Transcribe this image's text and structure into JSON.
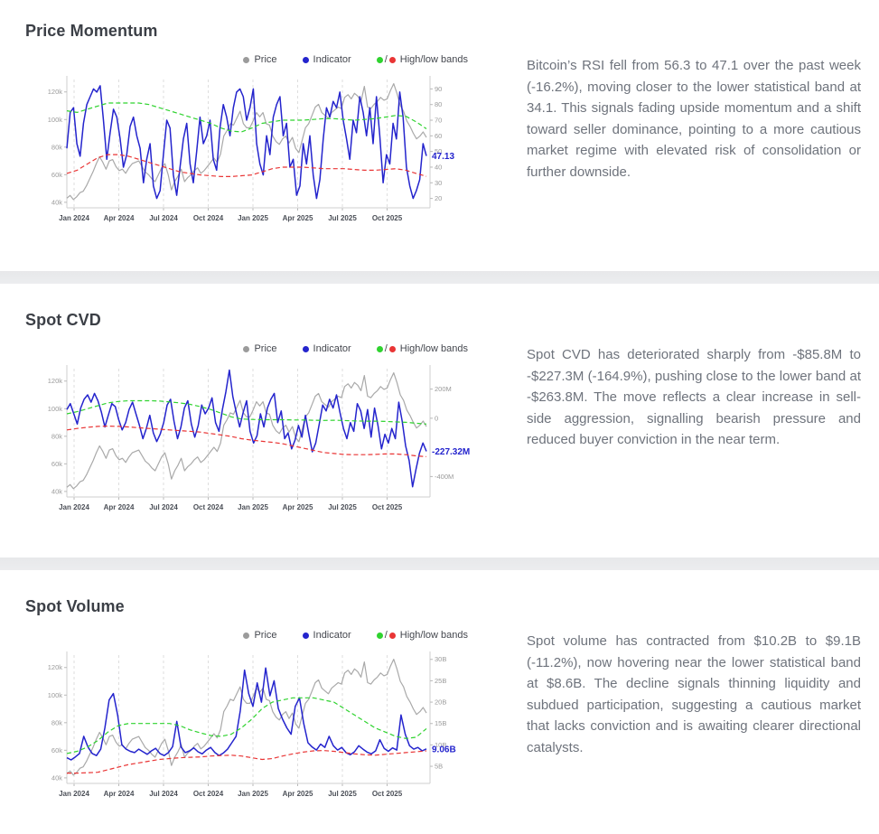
{
  "page": {
    "background": "#ffffff",
    "divider_color": "#eaebed"
  },
  "legend": {
    "price": "Price",
    "indicator": "Indicator",
    "bands": "High/low bands",
    "separator": "/",
    "price_color": "#9b9b9b",
    "indicator_color": "#2424cd",
    "high_color": "#2fd32f",
    "low_color": "#e93535"
  },
  "sections": [
    {
      "title": "Price Momentum",
      "description": "Bitcoin’s RSI fell from 56.3 to 47.1 over the past week (-16.2%), moving closer to the lower statistical band at 34.1. This signals fading upside momentum and a shift toward seller dominance, pointing to a more cautious market regime with elevated risk of consolidation or further downside."
    },
    {
      "title": "Spot CVD",
      "description": "Spot CVD has deteriorated sharply from -$85.8M to -$227.3M (-164.9%), pushing close to the lower band at -$263.8M. The move reflects a clear increase in sell-side aggression, signalling bearish pressure and reduced buyer conviction in the near term."
    },
    {
      "title": "Spot Volume",
      "description": "Spot volume has contracted from $10.2B to $9.1B (-11.2%), now hovering near the lower statistical band at $8.6B. The decline signals thinning liquidity and subdued participation, suggesting a cautious market that lacks conviction and is awaiting clearer directional catalysts."
    }
  ],
  "price_k": [
    43,
    45,
    42,
    44,
    47,
    48,
    52,
    57,
    62,
    68,
    73,
    69,
    64,
    70,
    71,
    66,
    63,
    64,
    61,
    65,
    68,
    69,
    70,
    66,
    62,
    60,
    57,
    55,
    60,
    65,
    68,
    60,
    49,
    55,
    59,
    64,
    55,
    58,
    60,
    63,
    65,
    61,
    63,
    66,
    69,
    72,
    69,
    75,
    88,
    92,
    97,
    96,
    101,
    106,
    97,
    94,
    94,
    99,
    105,
    102,
    105,
    97,
    96,
    88,
    84,
    82,
    86,
    88,
    83,
    87,
    79,
    76,
    85,
    94,
    97,
    103,
    109,
    111,
    105,
    103,
    101,
    105,
    107,
    109,
    108,
    116,
    118,
    115,
    119,
    117,
    113,
    124,
    109,
    108,
    111,
    113,
    116,
    114,
    115,
    121,
    126,
    119,
    110,
    106,
    99,
    95,
    90,
    86,
    88,
    91,
    87
  ],
  "chart_data": [
    {
      "type": "line",
      "title": "Price Momentum",
      "x_tick_labels": [
        "Jan 2024",
        "Apr 2024",
        "Jul 2024",
        "Oct 2024",
        "Jan 2025",
        "Apr 2025",
        "Jul 2025",
        "Oct 2025"
      ],
      "grid": "vertical-dashed",
      "legend_position": "top-right",
      "left_axis": {
        "ticks": [
          40,
          60,
          80,
          100,
          120
        ],
        "tick_labels": [
          "40k",
          "60k",
          "80k",
          "100k",
          "120k"
        ],
        "range": [
          36,
          129
        ]
      },
      "right_axis": {
        "ticks": [
          20,
          30,
          40,
          50,
          60,
          70,
          80,
          90
        ],
        "tick_labels": [
          "20",
          "30",
          "40",
          "50",
          "60",
          "70",
          "80",
          "90"
        ],
        "range": [
          14,
          96
        ]
      },
      "current_value": {
        "value": 47.13,
        "label": "47.13"
      },
      "series": [
        {
          "name": "Price",
          "axis": "left",
          "style": "solid",
          "color": "#a9a9a9",
          "values": "price_k"
        },
        {
          "name": "Indicator",
          "axis": "right",
          "style": "solid",
          "color": "#2424cd",
          "values": [
            52,
            75,
            78,
            55,
            47,
            68,
            80,
            85,
            90,
            88,
            92,
            70,
            45,
            62,
            77,
            72,
            58,
            40,
            48,
            66,
            72,
            60,
            52,
            30,
            45,
            55,
            28,
            20,
            25,
            48,
            70,
            65,
            35,
            22,
            40,
            58,
            68,
            42,
            30,
            50,
            72,
            55,
            60,
            70,
            45,
            38,
            65,
            80,
            72,
            60,
            78,
            88,
            90,
            85,
            70,
            78,
            90,
            55,
            42,
            35,
            60,
            48,
            72,
            80,
            85,
            60,
            68,
            40,
            45,
            22,
            28,
            55,
            42,
            60,
            35,
            20,
            32,
            58,
            78,
            72,
            82,
            78,
            88,
            70,
            58,
            45,
            70,
            62,
            85,
            75,
            60,
            78,
            55,
            85,
            60,
            30,
            48,
            42,
            68,
            58,
            88,
            72,
            40,
            28,
            20,
            25,
            32,
            55,
            47.13
          ]
        },
        {
          "name": "High band",
          "axis": "right",
          "style": "dashed",
          "color": "#2fd32f",
          "values": [
            76,
            75,
            77,
            79,
            81,
            81,
            81,
            81,
            80,
            78,
            76,
            74,
            72,
            70,
            68,
            65,
            63,
            62.5,
            65,
            68,
            69,
            70,
            70,
            70,
            70.5,
            71,
            71,
            70.5,
            70,
            70.5,
            71,
            72,
            73,
            72.5,
            69,
            64.5
          ]
        },
        {
          "name": "Low band",
          "axis": "right",
          "style": "dashed",
          "color": "#e93535",
          "values": [
            36,
            38,
            42,
            46,
            48,
            48,
            47,
            45,
            43,
            41,
            39,
            37,
            36,
            35,
            34.5,
            34,
            34,
            34.5,
            35,
            37,
            39,
            40,
            40,
            40,
            39.5,
            39,
            39,
            39,
            38.5,
            38,
            38,
            38.5,
            39,
            38,
            36,
            34.1
          ]
        }
      ]
    },
    {
      "type": "line",
      "title": "Spot CVD",
      "x_tick_labels": [
        "Jan 2024",
        "Apr 2024",
        "Jul 2024",
        "Oct 2024",
        "Jan 2025",
        "Apr 2025",
        "Jul 2025",
        "Oct 2025"
      ],
      "grid": "vertical-dashed",
      "legend_position": "top-right",
      "left_axis": {
        "ticks": [
          40,
          60,
          80,
          100,
          120
        ],
        "tick_labels": [
          "40k",
          "60k",
          "80k",
          "100k",
          "120k"
        ],
        "range": [
          36,
          129
        ]
      },
      "right_axis": {
        "ticks": [
          -400,
          0,
          200
        ],
        "tick_labels": [
          "-400M",
          "0",
          "200M"
        ],
        "range": [
          -540,
          340
        ]
      },
      "current_value": {
        "value": -227.32,
        "label": "-227.32M"
      },
      "series": [
        {
          "name": "Price",
          "axis": "left",
          "style": "solid",
          "color": "#a9a9a9",
          "values": "price_k"
        },
        {
          "name": "Indicator",
          "axis": "right",
          "style": "solid",
          "color": "#2424cd",
          "values": [
            60,
            100,
            30,
            -40,
            70,
            130,
            160,
            110,
            170,
            120,
            40,
            -60,
            20,
            100,
            80,
            -10,
            -80,
            -30,
            60,
            110,
            30,
            -50,
            -140,
            -70,
            20,
            -100,
            -160,
            -110,
            -30,
            90,
            130,
            -20,
            -140,
            -60,
            70,
            120,
            -40,
            -130,
            -50,
            90,
            30,
            70,
            140,
            -30,
            -90,
            60,
            180,
            330,
            150,
            40,
            -60,
            40,
            120,
            -90,
            -170,
            -120,
            30,
            -60,
            70,
            130,
            170,
            -30,
            50,
            -140,
            -100,
            -210,
            -150,
            -50,
            -130,
            20,
            -110,
            -230,
            -170,
            -40,
            90,
            50,
            130,
            70,
            160,
            40,
            -70,
            -140,
            -30,
            -90,
            100,
            50,
            -70,
            60,
            -130,
            70,
            -50,
            -210,
            -110,
            -170,
            -70,
            -140,
            110,
            -20,
            -190,
            -290,
            -470,
            -350,
            -240,
            -170,
            -227.32
          ]
        },
        {
          "name": "High band",
          "axis": "right",
          "style": "dashed",
          "color": "#2fd32f",
          "values": [
            30,
            45,
            65,
            85,
            105,
            115,
            120,
            120,
            120,
            118,
            112,
            105,
            95,
            80,
            60,
            35,
            10,
            -5,
            -8,
            -10,
            -10,
            -10,
            -12,
            -12,
            -14,
            -15,
            -14,
            -16,
            -18,
            -20,
            -20,
            -22,
            -25,
            -28,
            -34,
            -40
          ]
        },
        {
          "name": "Low band",
          "axis": "right",
          "style": "dashed",
          "color": "#e93535",
          "values": [
            -80,
            -70,
            -62,
            -56,
            -54,
            -56,
            -60,
            -65,
            -70,
            -75,
            -80,
            -85,
            -90,
            -95,
            -105,
            -115,
            -125,
            -140,
            -150,
            -158,
            -165,
            -175,
            -190,
            -205,
            -220,
            -235,
            -242,
            -248,
            -250,
            -250,
            -248,
            -245,
            -245,
            -250,
            -258,
            -263.8
          ]
        }
      ]
    },
    {
      "type": "line",
      "title": "Spot Volume",
      "x_tick_labels": [
        "Jan 2024",
        "Apr 2024",
        "Jul 2024",
        "Oct 2024",
        "Jan 2025",
        "Apr 2025",
        "Jul 2025",
        "Oct 2025"
      ],
      "grid": "vertical-dashed",
      "legend_position": "top-right",
      "left_axis": {
        "ticks": [
          40,
          60,
          80,
          100,
          120
        ],
        "tick_labels": [
          "40k",
          "60k",
          "80k",
          "100k",
          "120k"
        ],
        "range": [
          36,
          129
        ]
      },
      "right_axis": {
        "ticks": [
          5,
          10,
          15,
          20,
          25,
          30
        ],
        "tick_labels": [
          "5B",
          "10B",
          "15B",
          "20B",
          "25B",
          "30B"
        ],
        "range": [
          1,
          31
        ]
      },
      "current_value": {
        "value": 9.06,
        "label": "9.06B"
      },
      "series": [
        {
          "name": "Price",
          "axis": "left",
          "style": "solid",
          "color": "#a9a9a9",
          "values": "price_k"
        },
        {
          "name": "Indicator",
          "axis": "right",
          "style": "solid",
          "color": "#2424cd",
          "values": [
            7,
            6.5,
            7.2,
            8,
            12,
            9.5,
            8,
            7.5,
            9,
            14,
            20.5,
            22,
            17,
            10,
            9,
            8.5,
            8.2,
            9,
            8.4,
            7.8,
            8.6,
            9.2,
            8,
            7.5,
            8.2,
            9.6,
            15.5,
            9.5,
            8.2,
            8.6,
            9.3,
            8.4,
            7.9,
            8.8,
            9.4,
            8.2,
            7.5,
            8.1,
            9,
            10.5,
            12,
            18,
            27.5,
            22,
            19,
            24.5,
            20,
            28,
            21.5,
            25,
            18.5,
            16,
            14,
            12.5,
            19,
            21,
            15,
            10.5,
            9.5,
            8.8,
            10.2,
            9.4,
            12,
            9.8,
            8.8,
            9.4,
            8.2,
            7.7,
            8.4,
            9.8,
            9,
            8.3,
            7.9,
            8.6,
            11.2,
            9.2,
            8.5,
            9.3,
            8.8,
            17,
            12.5,
            9.8,
            9,
            9.4,
            8.6,
            9.06
          ]
        },
        {
          "name": "High band",
          "axis": "right",
          "style": "dashed",
          "color": "#2fd32f",
          "values": [
            8,
            8.5,
            9.5,
            11,
            13,
            14.5,
            15,
            15,
            15,
            15,
            15,
            14.5,
            13.5,
            12.8,
            12.2,
            12,
            12.5,
            14,
            16,
            18.5,
            20,
            20.5,
            21,
            21,
            21,
            20.5,
            20,
            18.5,
            17,
            15.5,
            14,
            13,
            12,
            11.5,
            11.8,
            13.8
          ]
        },
        {
          "name": "Low band",
          "axis": "right",
          "style": "dashed",
          "color": "#e93535",
          "values": [
            3.4,
            3.4,
            3.5,
            3.6,
            4.2,
            4.8,
            5.4,
            5.8,
            6.2,
            6.6,
            6.8,
            7,
            7.1,
            7.2,
            7.4,
            7.5,
            7.6,
            7.4,
            7,
            6.6,
            6.8,
            7.4,
            7.9,
            8.3,
            8.6,
            8.7,
            8.5,
            8.2,
            7.9,
            7.7,
            7.6,
            7.8,
            8,
            8.2,
            8.4,
            8.6
          ]
        }
      ]
    }
  ]
}
